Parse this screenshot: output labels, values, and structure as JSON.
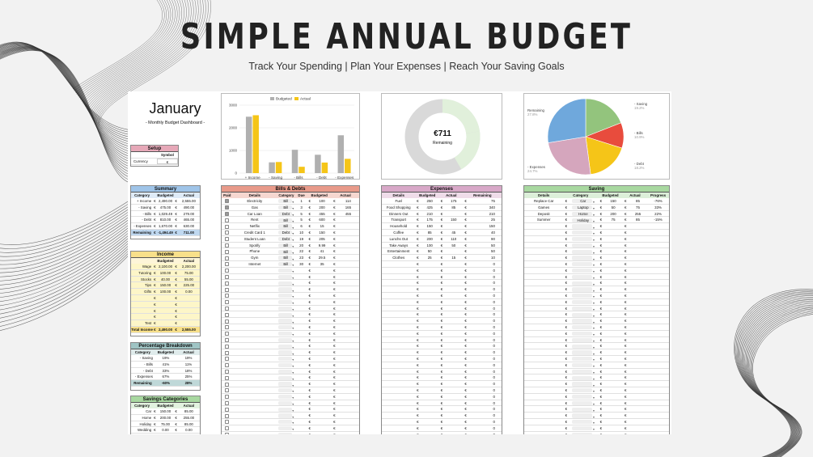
{
  "header": {
    "title": "SIMPLE ANNUAL BUDGET",
    "subtitle": "Track Your Spending | Plan Your Expenses | Reach Your Saving Goals"
  },
  "month": {
    "name": "January",
    "caption": "- Monthly Budget Dashboard -"
  },
  "colors": {
    "summary": "#9fc4e8",
    "income": "#f8e08a",
    "percentage": "#9fc4c4",
    "savings_cat": "#a8d8a0",
    "bills": "#e89a8a",
    "expenses": "#d8a8c8",
    "saving": "#a8d8a0",
    "setup": "#e6a8b8",
    "budgeted_bar": "#b0b0b0",
    "actual_bar": "#f5c518"
  },
  "setup": {
    "title": "Setup",
    "col": "Symbol",
    "label": "Currency",
    "value": "€"
  },
  "summary": {
    "title": "Summary",
    "cols": [
      "Category",
      "Budgeted",
      "Actual"
    ],
    "rows": [
      [
        "+ Income",
        "€",
        "2,490.00",
        "€",
        "2,555.00"
      ],
      [
        "- Saving",
        "€",
        "475.00",
        "€",
        "490.00"
      ],
      [
        "- Bills",
        "€",
        "1,029.49",
        "€",
        "279.00"
      ],
      [
        "- Debt",
        "€",
        "810.00",
        "€",
        "465.00"
      ],
      [
        "- Expenses",
        "€",
        "1,670.00",
        "€",
        "630.00"
      ]
    ],
    "total": [
      "Remaining",
      "€",
      "-1,494.49",
      "€",
      "711.00"
    ]
  },
  "income": {
    "title": "Income",
    "cols": [
      "",
      "Budgeted",
      "Actual"
    ],
    "rows": [
      [
        "Wage",
        "€",
        "2,100.00",
        "€",
        "2,200.00"
      ],
      [
        "Tutoring",
        "€",
        "100.00",
        "€",
        "75.00"
      ],
      [
        "Stocks",
        "€",
        "40.00",
        "€",
        "55.00"
      ],
      [
        "Tips",
        "€",
        "150.00",
        "€",
        "225.00"
      ],
      [
        "Gifts",
        "€",
        "100.00",
        "€",
        "0.00"
      ],
      [
        "",
        "€",
        "",
        "€",
        ""
      ],
      [
        "",
        "€",
        "",
        "€",
        ""
      ],
      [
        "",
        "€",
        "",
        "€",
        ""
      ],
      [
        "",
        "€",
        "",
        "€",
        ""
      ],
      [
        "Test",
        "€",
        "",
        "€",
        ""
      ]
    ],
    "total": [
      "Total Income",
      "€",
      "2,490.00",
      "€",
      "2,555.00"
    ]
  },
  "percentage": {
    "title": "Percentage Breakdown",
    "cols": [
      "Category",
      "Budgeted",
      "Actual"
    ],
    "rows": [
      [
        "- Saving",
        "19%",
        "19%"
      ],
      [
        "- Bills",
        "41%",
        "11%"
      ],
      [
        "- Debt",
        "33%",
        "18%"
      ],
      [
        "- Expenses",
        "67%",
        "25%"
      ]
    ],
    "total": [
      "Remaining",
      "-60%",
      "28%"
    ]
  },
  "savings_categories": {
    "title": "Savings Categories",
    "cols": [
      "Category",
      "Budgeted",
      "Actual"
    ],
    "rows": [
      [
        "Car",
        "€",
        "150.00",
        "€",
        "85.00"
      ],
      [
        "Home",
        "€",
        "200.00",
        "€",
        "255.00"
      ],
      [
        "Holiday",
        "€",
        "75.00",
        "€",
        "85.00"
      ],
      [
        "Wedding",
        "€",
        "0.00",
        "€",
        "0.00"
      ]
    ]
  },
  "bills": {
    "title": "Bills & Debts",
    "cols": [
      "Paid",
      "Details",
      "Category",
      "Due",
      "Budgeted",
      "Actual"
    ],
    "rows": [
      {
        "paid": true,
        "d": "Electricity",
        "c": "Bill",
        "due": "1",
        "b": "100",
        "a": "114"
      },
      {
        "paid": true,
        "d": "Gas",
        "c": "Bill",
        "due": "3",
        "b": "200",
        "a": "165"
      },
      {
        "paid": true,
        "d": "Car Loan",
        "c": "Debt",
        "due": "5",
        "b": "455",
        "a": "455"
      },
      {
        "paid": false,
        "d": "Rent",
        "c": "Bill",
        "due": "5",
        "b": "600",
        "a": ""
      },
      {
        "paid": false,
        "d": "Netflix",
        "c": "Bill",
        "due": "6",
        "b": "15",
        "a": ""
      },
      {
        "paid": false,
        "d": "Credit Card 1",
        "c": "Debt",
        "due": "10",
        "b": "150",
        "a": ""
      },
      {
        "paid": false,
        "d": "Student Loan",
        "c": "Debt",
        "due": "19",
        "b": "205",
        "a": ""
      },
      {
        "paid": false,
        "d": "Spotify",
        "c": "Bill",
        "due": "20",
        "b": "9.99",
        "a": ""
      },
      {
        "paid": false,
        "d": "Phone",
        "c": "Bill",
        "due": "22",
        "b": "41",
        "a": ""
      },
      {
        "paid": false,
        "d": "Gym",
        "c": "Bill",
        "due": "23",
        "b": "29.5",
        "a": ""
      },
      {
        "paid": false,
        "d": "Internet",
        "c": "Bill",
        "due": "30",
        "b": "35",
        "a": ""
      }
    ]
  },
  "expenses": {
    "title": "Expenses",
    "cols": [
      "Details",
      "Budgeted",
      "Actual",
      "Remaining"
    ],
    "rows": [
      [
        "Fuel",
        "250",
        "175",
        "75"
      ],
      [
        "Food Shopping",
        "425",
        "85",
        "340"
      ],
      [
        "Dinners Out",
        "210",
        "",
        "210"
      ],
      [
        "Transport",
        "175",
        "150",
        "25"
      ],
      [
        "Household",
        "150",
        "",
        "150"
      ],
      [
        "Coffee",
        "85",
        "45",
        "40"
      ],
      [
        "Lunchs Out",
        "200",
        "110",
        "90"
      ],
      [
        "Take Aways",
        "100",
        "50",
        "50"
      ],
      [
        "Entertainment",
        "50",
        "",
        "50"
      ],
      [
        "Clothes",
        "25",
        "15",
        "10"
      ]
    ],
    "zero": "0"
  },
  "saving": {
    "title": "Saving",
    "cols": [
      "Details",
      "Category",
      "Budgeted",
      "Actual",
      "Progress"
    ],
    "rows": [
      [
        "Replace Car",
        "Car",
        "150",
        "85",
        "-76%"
      ],
      [
        "Games",
        "Laptop",
        "50",
        "75",
        "33%"
      ],
      [
        "Deposit",
        "Home",
        "200",
        "255",
        "22%"
      ],
      [
        "Summer",
        "Holiday",
        "75",
        "85",
        "-15%"
      ]
    ]
  },
  "currency": "€",
  "dropdown_glyph": "▼",
  "donut": {
    "value": "€711",
    "label": "Remaining"
  },
  "chart_data": [
    {
      "type": "bar",
      "categories": [
        "+ Income",
        "- Saving",
        "- Bills",
        "- Debt",
        "- Expenses"
      ],
      "series": [
        {
          "name": "Budgeted",
          "values": [
            2490,
            475,
            1029,
            810,
            1670
          ]
        },
        {
          "name": "Actual",
          "values": [
            2555,
            490,
            279,
            465,
            630
          ]
        }
      ],
      "yticks": [
        "0",
        "1000",
        "2000",
        "3000"
      ],
      "ylim": [
        0,
        3000
      ],
      "legend": "top"
    },
    {
      "type": "pie",
      "labels": [
        "- Saving",
        "- Bills",
        "- Debt",
        "- Expenses",
        "Remaining"
      ],
      "values": [
        19.2,
        10.9,
        18.2,
        24.7,
        27.8
      ],
      "pct_labels": [
        "19.2%",
        "10.9%",
        "18.2%",
        "24.7%",
        "27.8%"
      ],
      "colors": [
        "#93c47d",
        "#e84c3d",
        "#f5c518",
        "#d5a6bd",
        "#6fa8dc"
      ]
    }
  ]
}
